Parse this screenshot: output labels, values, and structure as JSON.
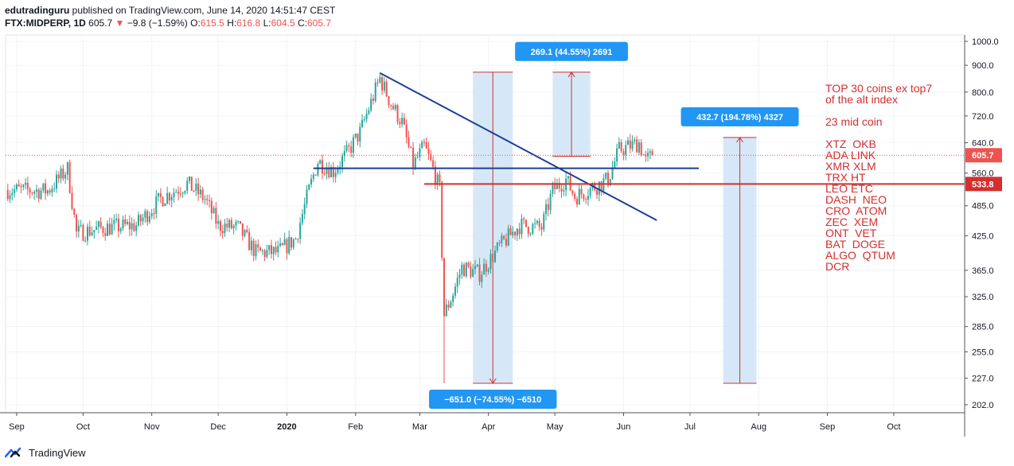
{
  "header": {
    "publisher": "edutradinguru",
    "published_line": " published on TradingView.com, June 14, 2020 14:51:47 CEST",
    "symbol": "FTX:MIDPERP, 1D",
    "last": "605.7",
    "change": "−9.8 (−1.59%)",
    "o_label": "O:",
    "o_val": "615.5",
    "h_label": "H:",
    "h_val": "616.8",
    "l_label": "L:",
    "l_val": "604.5",
    "c_label": "C:",
    "c_val": "605.7"
  },
  "footer": {
    "brand": "TradingView"
  },
  "annotations": {
    "title1": "TOP 30 coins ex top7",
    "title2": "of the alt index",
    "subtitle": "23 mid coin",
    "coins": [
      "XTZ  OKB",
      "ADA LINK",
      "XMR XLM",
      "TRX HT",
      "LEO ETC",
      "DASH  NEO",
      "CRO  ATOM",
      "ZEC  XEM",
      "ONT  VET",
      "BAT  DOGE",
      "ALGO  QTUM",
      "DCR"
    ]
  },
  "measure_labels": {
    "drop": "−651.0 (−74.55%) −6510",
    "rise1": "269.1 (44.55%) 2691",
    "rise2": "432.7 (194.78%) 4327"
  },
  "chart_data": {
    "type": "candlestick",
    "title": "FTX:MIDPERP, 1D",
    "price_scale": "log",
    "y_ticks": [
      "1000.0",
      "900.0",
      "800.0",
      "720.0",
      "640.0",
      "560.0",
      "485.0",
      "425.0",
      "365.0",
      "325.0",
      "285.0",
      "255.0",
      "227.0",
      "202.0"
    ],
    "x_ticks": [
      "Sep",
      "Oct",
      "Nov",
      "Dec",
      "2020",
      "Feb",
      "Mar",
      "Apr",
      "May",
      "Jun",
      "Jul",
      "Aug",
      "Sep",
      "Oct"
    ],
    "last_price_badge": "605.7",
    "level_badge": "533.8",
    "colors": {
      "up": "#26a69a",
      "down": "#ef5350",
      "trendline": "#1c3f94",
      "level": "#d32f2f",
      "measure_fill": "#cfe4f7",
      "measure_label": "#2196f3"
    },
    "anchors": [
      {
        "date": "2019-08-28",
        "close": 520
      },
      {
        "date": "2019-09-15",
        "close": 518
      },
      {
        "date": "2019-09-24",
        "close": 570
      },
      {
        "date": "2019-09-28",
        "close": 430
      },
      {
        "date": "2019-10-10",
        "close": 440
      },
      {
        "date": "2019-10-25",
        "close": 445
      },
      {
        "date": "2019-11-05",
        "close": 500
      },
      {
        "date": "2019-11-17",
        "close": 535
      },
      {
        "date": "2019-11-25",
        "close": 500
      },
      {
        "date": "2019-12-01",
        "close": 445
      },
      {
        "date": "2019-12-10",
        "close": 440
      },
      {
        "date": "2019-12-18",
        "close": 395
      },
      {
        "date": "2019-12-28",
        "close": 395
      },
      {
        "date": "2020-01-05",
        "close": 420
      },
      {
        "date": "2020-01-11",
        "close": 520
      },
      {
        "date": "2020-01-15",
        "close": 590
      },
      {
        "date": "2020-01-22",
        "close": 565
      },
      {
        "date": "2020-01-28",
        "close": 610
      },
      {
        "date": "2020-02-03",
        "close": 670
      },
      {
        "date": "2020-02-12",
        "close": 850
      },
      {
        "date": "2020-02-17",
        "close": 760
      },
      {
        "date": "2020-02-22",
        "close": 700
      },
      {
        "date": "2020-02-27",
        "close": 580
      },
      {
        "date": "2020-03-03",
        "close": 630
      },
      {
        "date": "2020-03-07",
        "close": 570
      },
      {
        "date": "2020-03-10",
        "close": 520
      },
      {
        "date": "2020-03-12",
        "close": 300
      },
      {
        "date": "2020-03-16",
        "close": 330
      },
      {
        "date": "2020-03-20",
        "close": 370
      },
      {
        "date": "2020-03-28",
        "close": 360
      },
      {
        "date": "2020-04-06",
        "close": 405
      },
      {
        "date": "2020-04-15",
        "close": 445
      },
      {
        "date": "2020-04-25",
        "close": 440
      },
      {
        "date": "2020-04-30",
        "close": 520
      },
      {
        "date": "2020-05-06",
        "close": 545
      },
      {
        "date": "2020-05-10",
        "close": 505
      },
      {
        "date": "2020-05-20",
        "close": 530
      },
      {
        "date": "2020-05-25",
        "close": 545
      },
      {
        "date": "2020-05-30",
        "close": 620
      },
      {
        "date": "2020-06-08",
        "close": 640
      },
      {
        "date": "2020-06-11",
        "close": 590
      },
      {
        "date": "2020-06-14",
        "close": 605.7
      }
    ],
    "trendlines": [
      {
        "from": {
          "date": "2020-02-12",
          "price": 870
        },
        "to": {
          "date": "2020-06-16",
          "price": 455
        }
      },
      {
        "from": {
          "date": "2020-01-13",
          "price": 572
        },
        "to": {
          "date": "2020-07-05",
          "price": 572
        }
      }
    ],
    "horizontal_level": 533.8,
    "measures": [
      {
        "from": {
          "date": "2020-03-25",
          "price": 873
        },
        "to": {
          "date": "2020-04-12",
          "price": 222
        },
        "label_key": "drop"
      },
      {
        "from": {
          "date": "2020-04-30",
          "price": 603
        },
        "to": {
          "date": "2020-05-17",
          "price": 873
        },
        "label_key": "rise1"
      },
      {
        "from": {
          "date": "2020-07-16",
          "price": 222
        },
        "to": {
          "date": "2020-07-31",
          "price": 655
        },
        "label_key": "rise2"
      }
    ]
  }
}
